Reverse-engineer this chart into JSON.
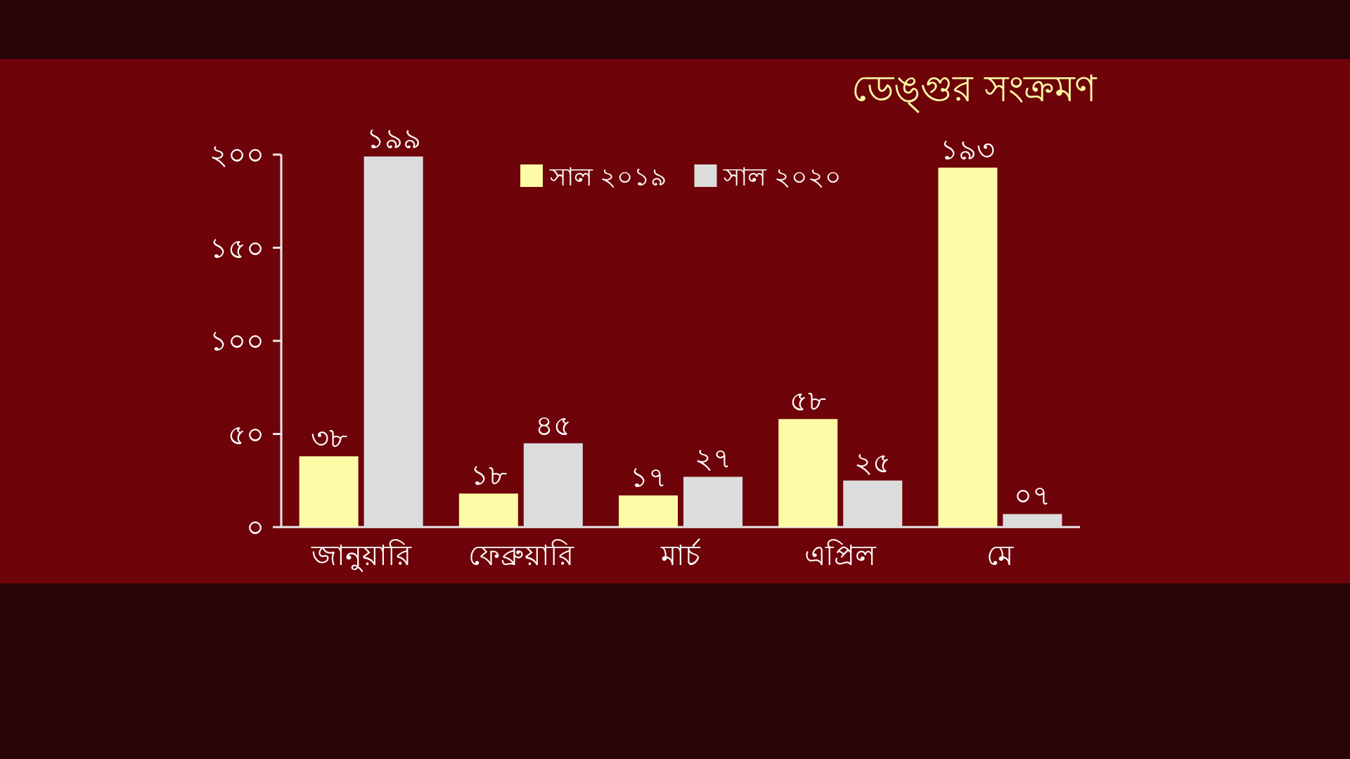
{
  "chart_data": {
    "type": "bar",
    "title": "ডেঙ্গুর সংক্রমণ",
    "categories": [
      "জানুয়ারি",
      "ফেব্রুয়ারি",
      "মার্চ",
      "এপ্রিল",
      "মে"
    ],
    "series": [
      {
        "name": "সাল ২০১৯",
        "color": "#fdfba6",
        "values": [
          38,
          18,
          17,
          58,
          193
        ],
        "value_labels": [
          "৩৮",
          "১৮",
          "১৭",
          "৫৮",
          "১৯৩"
        ]
      },
      {
        "name": "সাল ২০২০",
        "color": "#dcdcdc",
        "values": [
          199,
          45,
          27,
          25,
          7
        ],
        "value_labels": [
          "১৯৯",
          "৪৫",
          "২৭",
          "২৫",
          "০৭"
        ]
      }
    ],
    "ylim": [
      0,
      200
    ],
    "yticks": [
      {
        "value": 0,
        "label": "০"
      },
      {
        "value": 50,
        "label": "৫০"
      },
      {
        "value": 100,
        "label": "১০০"
      },
      {
        "value": 150,
        "label": "১৫০"
      },
      {
        "value": 200,
        "label": "২০০"
      }
    ],
    "legend": "top",
    "grid": false
  }
}
